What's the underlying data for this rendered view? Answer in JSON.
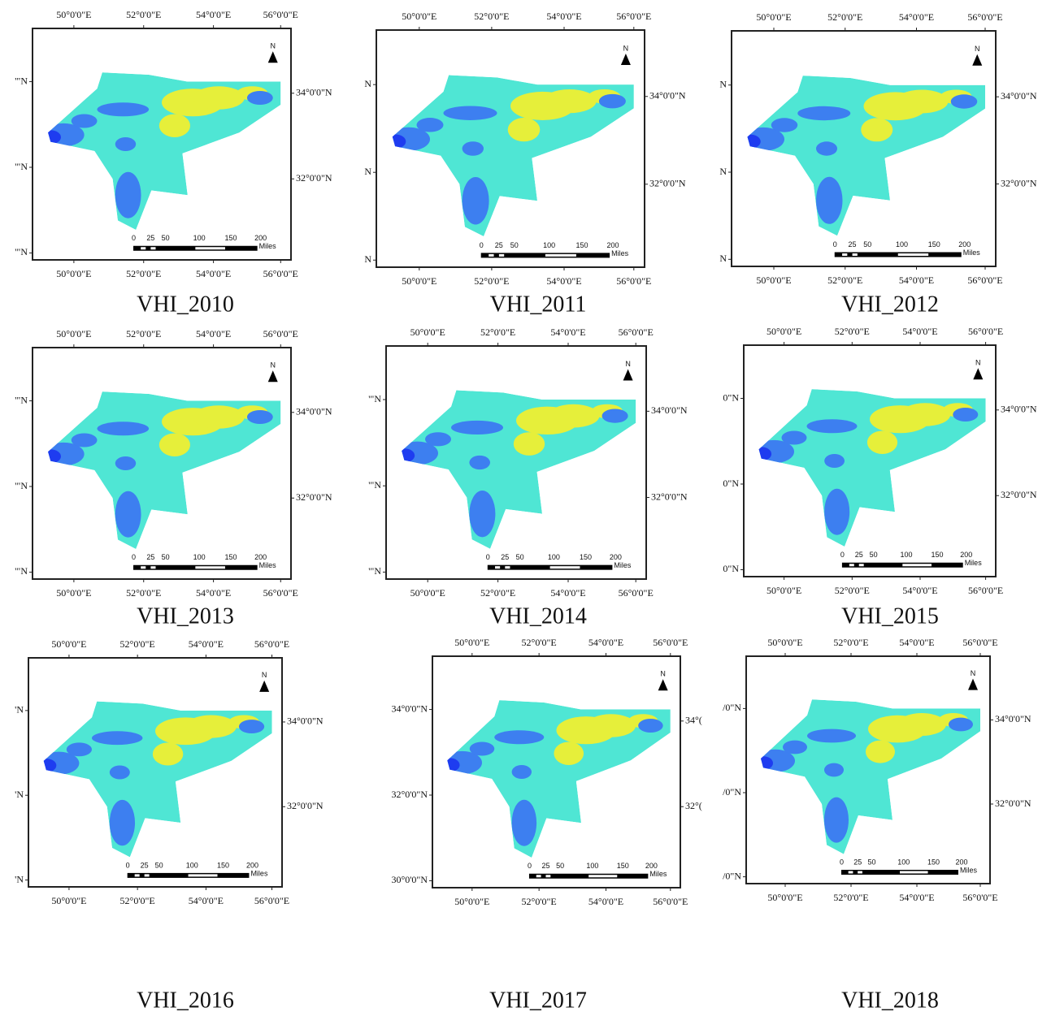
{
  "panels": [
    {
      "caption": "VHI_2010",
      "top_ticks": [
        "50°0'0\"E",
        "52°0'0\"E",
        "54°0'0\"E",
        "56°0'0\"E"
      ],
      "bottom_ticks": [
        "50°0'0\"E",
        "52°0'0\"E",
        "54°0'0\"E",
        "56°0'0\"E"
      ],
      "left_ticks": [
        "'\"N",
        "'\"N",
        "'\"N"
      ],
      "right_ticks": [
        "34°0'0\"N",
        "32°0'0\"N"
      ]
    },
    {
      "caption": "VHI_2011",
      "top_ticks": [
        "50°0'0\"E",
        "52°0'0\"E",
        "54°0'0\"E",
        "56°0'0\"E"
      ],
      "bottom_ticks": [
        "50°0'0\"E",
        "52°0'0\"E",
        "54°0'0\"E",
        "56°0'0\"E"
      ],
      "left_ticks": [
        "N",
        "N",
        "N"
      ],
      "right_ticks": [
        "34°0'0\"N",
        "32°0'0\"N"
      ]
    },
    {
      "caption": "VHI_2012",
      "top_ticks": [
        "50°0'0\"E",
        "52°0'0\"E",
        "54°0'0\"E",
        "56°0'0\"E"
      ],
      "bottom_ticks": [
        "50°0'0\"E",
        "52°0'0\"E",
        "54°0'0\"E",
        "56°0'0\"E"
      ],
      "left_ticks": [
        "N",
        "N",
        "N"
      ],
      "right_ticks": [
        "34°0'0\"N",
        "32°0'0\"N"
      ]
    },
    {
      "caption": "VHI_2013",
      "top_ticks": [
        "50°0'0\"E",
        "52°0'0\"E",
        "54°0'0\"E",
        "56°0'0\"E"
      ],
      "bottom_ticks": [
        "50°0'0\"E",
        "52°0'0\"E",
        "54°0'0\"E",
        "56°0'0\"E"
      ],
      "left_ticks": [
        "'\"N",
        "'\"N",
        "'\"N"
      ],
      "right_ticks": [
        "34°0'0\"N",
        "32°0'0\"N"
      ]
    },
    {
      "caption": "VHI_2014",
      "top_ticks": [
        "50°0'0\"E",
        "52°0'0\"E",
        "54°0'0\"E",
        "56°0'0\"E"
      ],
      "bottom_ticks": [
        "50°0'0\"E",
        "52°0'0\"E",
        "54°0'0\"E",
        "56°0'0\"E"
      ],
      "left_ticks": [
        "'\"N",
        "'\"N",
        "'\"N"
      ],
      "right_ticks": [
        "34°0'0\"N",
        "32°0'0\"N"
      ]
    },
    {
      "caption": "VHI_2015",
      "top_ticks": [
        "50°0'0\"E",
        "52°0'0\"E",
        "54°0'0\"E",
        "56°0'0\"E"
      ],
      "bottom_ticks": [
        "50°0'0\"E",
        "52°0'0\"E",
        "54°0'0\"E",
        "56°0'0\"E"
      ],
      "left_ticks": [
        "0\"N",
        "0\"N",
        "0\"N"
      ],
      "right_ticks": [
        "34°0'0\"N",
        "32°0'0\"N"
      ]
    },
    {
      "caption": "VHI_2016",
      "top_ticks": [
        "50°0'0\"E",
        "52°0'0\"E",
        "54°0'0\"E",
        "56°0'0\"E"
      ],
      "bottom_ticks": [
        "50°0'0\"E",
        "52°0'0\"E",
        "54°0'0\"E",
        "56°0'0\"E"
      ],
      "left_ticks": [
        "'N",
        "'N",
        "'N"
      ],
      "right_ticks": [
        "34°0'0\"N",
        "32°0'0\"N"
      ]
    },
    {
      "caption": "VHI_2017",
      "top_ticks": [
        "50°0'0\"E",
        "52°0'0\"E",
        "54°0'0\"E",
        "56°0'0\"E"
      ],
      "bottom_ticks": [
        "50°0'0\"E",
        "52°0'0\"E",
        "54°0'0\"E",
        "56°0'0\"E"
      ],
      "left_ticks": [
        "34°0'0\"N",
        "32°0'0\"N",
        "30°0'0\"N"
      ],
      "right_ticks": [
        "34°(",
        "32°("
      ]
    },
    {
      "caption": "VHI_2018",
      "top_ticks": [
        "50°0'0\"E",
        "52°0'0\"E",
        "54°0'0\"E",
        "56°0'0\"E"
      ],
      "bottom_ticks": [
        "50°0'0\"E",
        "52°0'0\"E",
        "54°0'0\"E",
        "56°0'0\"E"
      ],
      "left_ticks": [
        "/0\"N",
        "/0\"N",
        "/0\"N"
      ],
      "right_ticks": [
        "34°0'0\"N",
        "32°0'0\"N"
      ]
    }
  ],
  "scale_bar": {
    "labels": [
      "0",
      "25",
      "50",
      "100",
      "150",
      "200"
    ],
    "unit": "Miles"
  },
  "north": "N"
}
